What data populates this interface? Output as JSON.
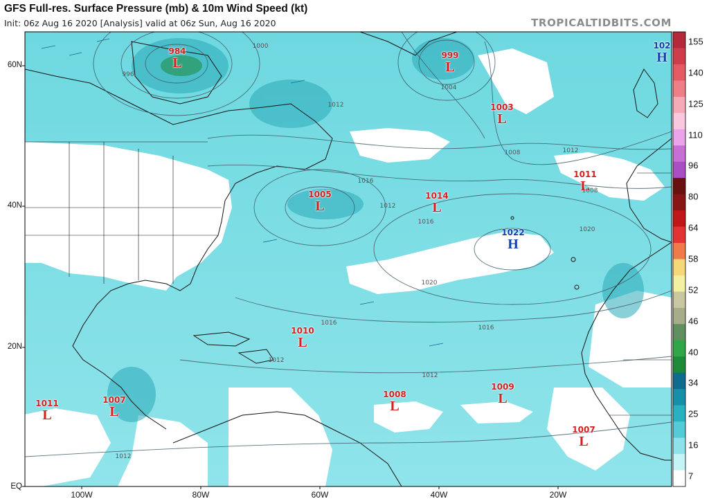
{
  "header": {
    "title": "GFS Full-res. Surface Pressure (mb) & 10m Wind Speed (kt)",
    "subtitle": "Init: 06z Aug 16 2020   [Analysis]   valid at 06z Sun, Aug 16 2020",
    "brand": "TROPICALTIDBITS.COM"
  },
  "axes": {
    "lat_labels": [
      "60N",
      "40N",
      "20N",
      "EQ"
    ],
    "lon_labels": [
      "100W",
      "80W",
      "60W",
      "40W",
      "20W"
    ]
  },
  "colorbar": {
    "labels": [
      "155",
      "140",
      "125",
      "110",
      "96",
      "80",
      "64",
      "58",
      "52",
      "46",
      "40",
      "34",
      "25",
      "16",
      "7"
    ],
    "colors": [
      "#b42a3a",
      "#cf3c4a",
      "#e35a62",
      "#ef7f86",
      "#f6a9b6",
      "#f9c8df",
      "#eba3ea",
      "#c86fd6",
      "#a94ec3",
      "#6a1010",
      "#8a1515",
      "#c01818",
      "#e23434",
      "#f07a4a",
      "#f5d878",
      "#f3f0a2",
      "#c8c7a0",
      "#a6ad88",
      "#5f8e5f",
      "#2fa746",
      "#1d8a3a",
      "#0e6d8e",
      "#1590a8",
      "#29b1c2",
      "#53ccd8",
      "#8ee3ea",
      "#c5f4f6",
      "#ffffff"
    ]
  },
  "systems": [
    {
      "type": "L",
      "value": "984"
    },
    {
      "type": "L",
      "value": "999"
    },
    {
      "type": "L",
      "value": "1003"
    },
    {
      "type": "H",
      "value": "102"
    },
    {
      "type": "L",
      "value": "1011"
    },
    {
      "type": "L",
      "value": "1005"
    },
    {
      "type": "L",
      "value": "1014"
    },
    {
      "type": "H",
      "value": "1022"
    },
    {
      "type": "L",
      "value": "1010"
    },
    {
      "type": "L",
      "value": "1008"
    },
    {
      "type": "L",
      "value": "1009"
    },
    {
      "type": "L",
      "value": "1011"
    },
    {
      "type": "L",
      "value": "1007"
    },
    {
      "type": "L",
      "value": "1007"
    }
  ],
  "isobar_labels": [
    "996",
    "1000",
    "1012",
    "1008",
    "1004",
    "1012",
    "1016",
    "1012",
    "1016",
    "1020",
    "1020",
    "1016",
    "1016",
    "1012",
    "1012",
    "1012",
    "1008"
  ]
}
